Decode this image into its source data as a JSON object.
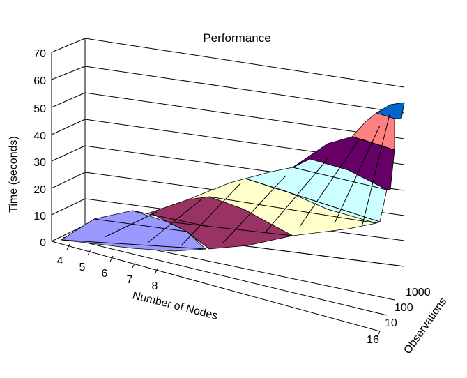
{
  "chart_data": {
    "type": "surface",
    "title": "Performance",
    "ylabel": "Time (seconds)",
    "xlabel": "Number of Nodes",
    "zlabel": "Observations",
    "zlim": [
      0,
      70
    ],
    "z_ticks": [
      "0",
      "10",
      "20",
      "30",
      "40",
      "50",
      "60",
      "70"
    ],
    "x_ticks": [
      "4",
      "5",
      "6",
      "7",
      "8",
      "16"
    ],
    "depth_ticks": [
      "10",
      "100",
      "1000"
    ],
    "legend": "none",
    "bands": [
      {
        "range": "0-10",
        "color": "#9999ff"
      },
      {
        "range": "10-20",
        "color": "#993366"
      },
      {
        "range": "20-30",
        "color": "#ffffcc"
      },
      {
        "range": "30-40",
        "color": "#ccffff"
      },
      {
        "range": "40-50",
        "color": "#660066"
      },
      {
        "range": "50-60",
        "color": "#ff8080"
      },
      {
        "range": "60-70",
        "color": "#0066cc"
      }
    ]
  }
}
